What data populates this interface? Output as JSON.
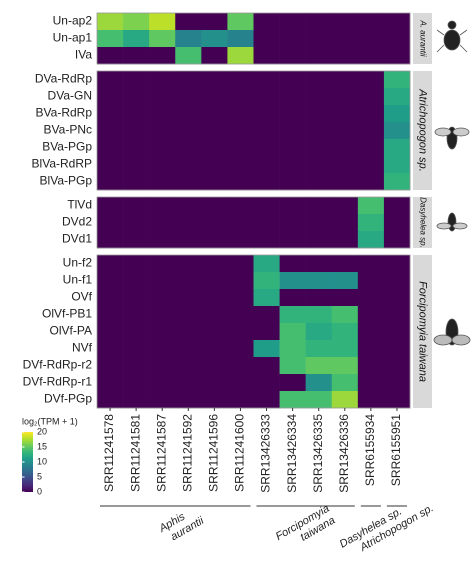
{
  "chart_data": {
    "type": "heatmap",
    "columns": [
      "SRR11241578",
      "SRR11241581",
      "SRR11241587",
      "SRR11241592",
      "SRR11241596",
      "SRR11241600",
      "SRR13426333",
      "SRR13426334",
      "SRR13426335",
      "SRR13426336",
      "SRR6155934",
      "SRR6155951"
    ],
    "panels": [
      {
        "strip": "A. aurantii",
        "rows": [
          {
            "name": "Un-ap2",
            "values": [
              17,
              16,
              18,
              0,
              0,
              15,
              0,
              0,
              0,
              0,
              0,
              0
            ]
          },
          {
            "name": "Un-ap1",
            "values": [
              14,
              12,
              15,
              9,
              10,
              9,
              0,
              0,
              0,
              0,
              0,
              0
            ]
          },
          {
            "name": "IVa",
            "values": [
              0,
              0,
              0,
              14,
              0,
              17,
              0,
              0,
              0,
              0,
              0,
              0
            ]
          }
        ]
      },
      {
        "strip": "Atrichopogon sp.",
        "rows": [
          {
            "name": "DVa-RdRp",
            "values": [
              0,
              0,
              0,
              0,
              0,
              0,
              0,
              0,
              0,
              0,
              0,
              13
            ]
          },
          {
            "name": "DVa-GN",
            "values": [
              0,
              0,
              0,
              0,
              0,
              0,
              0,
              0,
              0,
              0,
              0,
              12
            ]
          },
          {
            "name": "BVa-RdRp",
            "values": [
              0,
              0,
              0,
              0,
              0,
              0,
              0,
              0,
              0,
              0,
              0,
              11
            ]
          },
          {
            "name": "BVa-PNc",
            "values": [
              0,
              0,
              0,
              0,
              0,
              0,
              0,
              0,
              0,
              0,
              0,
              10
            ]
          },
          {
            "name": "BVa-PGp",
            "values": [
              0,
              0,
              0,
              0,
              0,
              0,
              0,
              0,
              0,
              0,
              0,
              12
            ]
          },
          {
            "name": "BlVa-RdRP",
            "values": [
              0,
              0,
              0,
              0,
              0,
              0,
              0,
              0,
              0,
              0,
              0,
              12
            ]
          },
          {
            "name": "BlVa-PGp",
            "values": [
              0,
              0,
              0,
              0,
              0,
              0,
              0,
              0,
              0,
              0,
              0,
              13
            ]
          }
        ]
      },
      {
        "strip": "Dasyhelea sp.",
        "rows": [
          {
            "name": "TlVd",
            "values": [
              0,
              0,
              0,
              0,
              0,
              0,
              0,
              0,
              0,
              0,
              14,
              0
            ]
          },
          {
            "name": "DVd2",
            "values": [
              0,
              0,
              0,
              0,
              0,
              0,
              0,
              0,
              0,
              0,
              13,
              0
            ]
          },
          {
            "name": "DVd1",
            "values": [
              0,
              0,
              0,
              0,
              0,
              0,
              0,
              0,
              0,
              0,
              12,
              0
            ]
          }
        ]
      },
      {
        "strip": "Forcipomyia taiwana",
        "rows": [
          {
            "name": "Un-f2",
            "values": [
              0,
              0,
              0,
              0,
              0,
              0,
              12,
              0,
              0,
              0,
              0,
              0
            ]
          },
          {
            "name": "Un-f1",
            "values": [
              0,
              0,
              0,
              0,
              0,
              0,
              13,
              10,
              10,
              10,
              0,
              0
            ]
          },
          {
            "name": "OVf",
            "values": [
              0,
              0,
              0,
              0,
              0,
              0,
              12,
              0,
              0,
              0,
              0,
              0
            ]
          },
          {
            "name": "OlVf-PB1",
            "values": [
              0,
              0,
              0,
              0,
              0,
              0,
              0,
              13,
              13,
              14,
              0,
              0
            ]
          },
          {
            "name": "OlVf-PA",
            "values": [
              0,
              0,
              0,
              0,
              0,
              0,
              0,
              14,
              12,
              13,
              0,
              0
            ]
          },
          {
            "name": "NVf",
            "values": [
              0,
              0,
              0,
              0,
              0,
              0,
              11,
              14,
              13,
              13,
              0,
              0
            ]
          },
          {
            "name": "DVf-RdRp-r2",
            "values": [
              0,
              0,
              0,
              0,
              0,
              0,
              0,
              14,
              15,
              15,
              0,
              0
            ]
          },
          {
            "name": "DVf-RdRp-r1",
            "values": [
              0,
              0,
              0,
              0,
              0,
              0,
              0,
              0,
              10,
              14,
              0,
              0
            ]
          },
          {
            "name": "DVf-PGp",
            "values": [
              0,
              0,
              0,
              0,
              0,
              0,
              0,
              14,
              14,
              17,
              0,
              0
            ]
          }
        ]
      }
    ],
    "column_groups": [
      {
        "lines": [
          "Aphis",
          "aurantii"
        ],
        "span": 6
      },
      {
        "lines": [
          "Forcipomyia",
          "taiwana"
        ],
        "span": 4
      },
      {
        "lines": [
          "Dasyhelea sp."
        ],
        "span": 1
      },
      {
        "lines": [
          "Atrichopogon sp."
        ],
        "span": 1
      }
    ],
    "legend_title": "log₂(TPM + 1)",
    "zlim": [
      0,
      20
    ],
    "zticks": [
      0,
      5,
      10,
      15,
      20
    ],
    "colormap": [
      "#440154",
      "#482878",
      "#3e4989",
      "#31688e",
      "#26828e",
      "#1f9e89",
      "#35b779",
      "#6ece58",
      "#b5de2b",
      "#fde725"
    ]
  }
}
